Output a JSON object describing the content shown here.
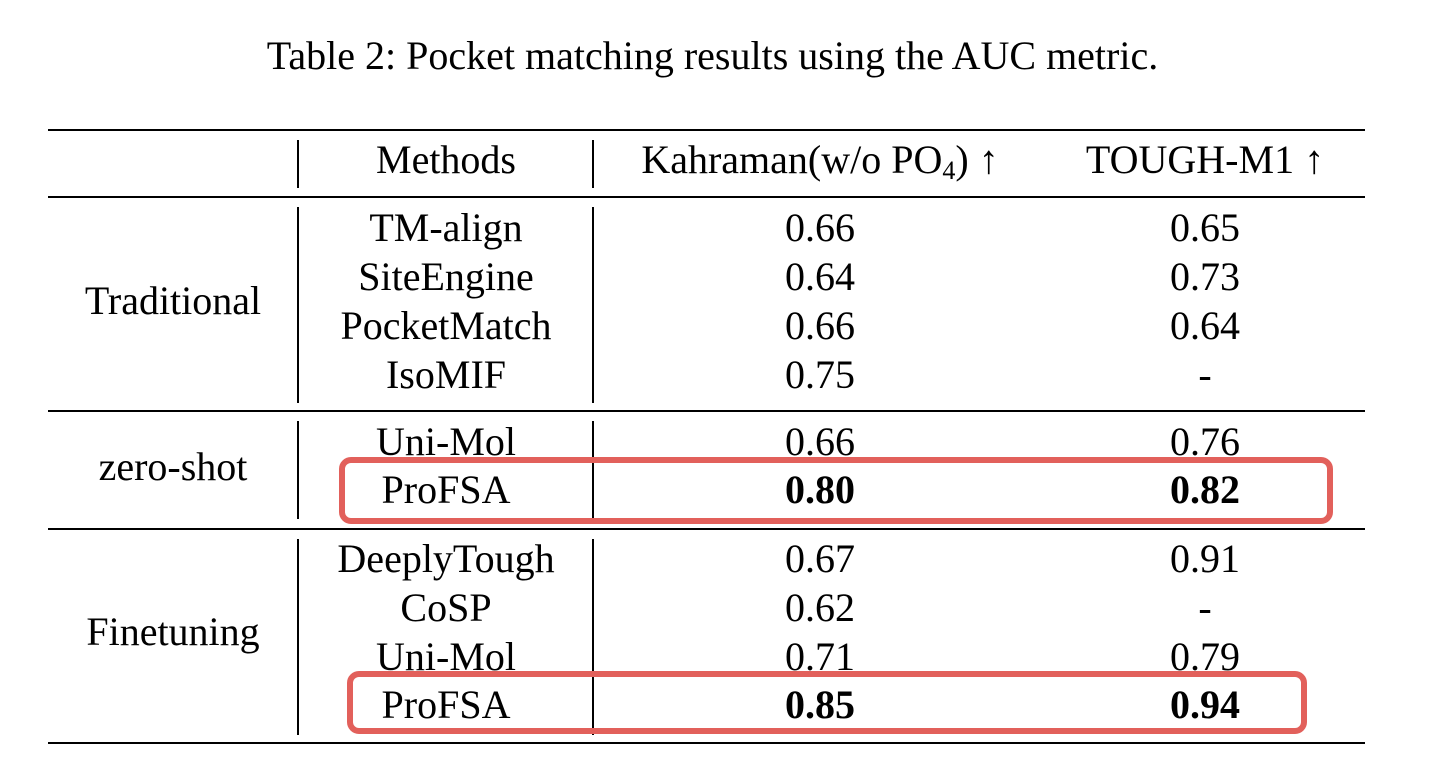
{
  "caption": "Table 2: Pocket matching results using the AUC metric.",
  "header": {
    "methods": "Methods",
    "kahraman_pre": "Kahraman(w/o PO",
    "kahraman_sub": "4",
    "kahraman_post": ") ↑",
    "tough": "TOUGH-M1 ↑"
  },
  "groups": [
    {
      "label": "Traditional",
      "rows": [
        {
          "method": "TM-align",
          "kahraman": "0.66",
          "tough": "0.65"
        },
        {
          "method": "SiteEngine",
          "kahraman": "0.64",
          "tough": "0.73"
        },
        {
          "method": "PocketMatch",
          "kahraman": "0.66",
          "tough": "0.64"
        },
        {
          "method": "IsoMIF",
          "kahraman": "0.75",
          "tough": "-"
        }
      ]
    },
    {
      "label": "zero-shot",
      "rows": [
        {
          "method": "Uni-Mol",
          "kahraman": "0.66",
          "tough": "0.76"
        },
        {
          "method": "ProFSA",
          "kahraman": "0.80",
          "tough": "0.82"
        }
      ]
    },
    {
      "label": "Finetuning",
      "rows": [
        {
          "method": "DeeplyTough",
          "kahraman": "0.67",
          "tough": "0.91"
        },
        {
          "method": "CoSP",
          "kahraman": "0.62",
          "tough": "-"
        },
        {
          "method": "Uni-Mol",
          "kahraman": "0.71",
          "tough": "0.79"
        },
        {
          "method": "ProFSA",
          "kahraman": "0.85",
          "tough": "0.94"
        }
      ]
    }
  ],
  "highlight_color": "#e2605b"
}
